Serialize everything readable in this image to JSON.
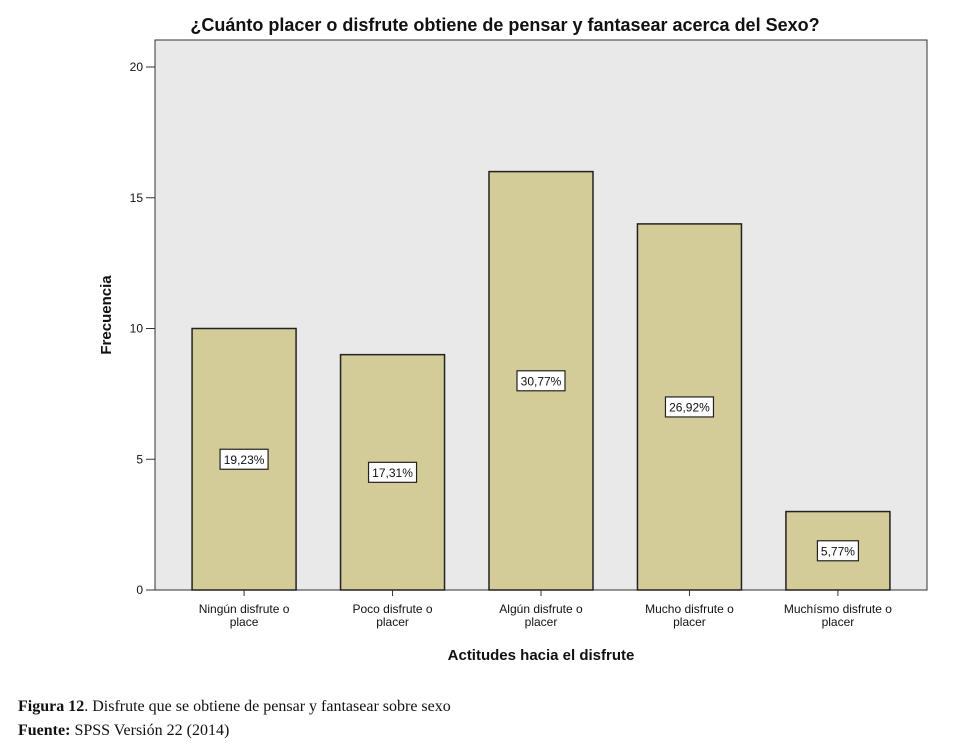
{
  "chart_data": {
    "type": "bar",
    "title": "¿Cuánto placer o disfrute obtiene de pensar y fantasear acerca del Sexo?",
    "xlabel": "Actitudes hacia el disfrute",
    "ylabel": "Frecuencia",
    "ylim": [
      0,
      20
    ],
    "yticks": [
      0,
      5,
      10,
      15,
      20
    ],
    "grid": false,
    "categories": [
      [
        "Ningún disfrute o",
        "place"
      ],
      [
        "Poco disfrute o",
        "placer"
      ],
      [
        "Algún  disfrute o",
        "placer"
      ],
      [
        "Mucho disfrute o",
        "placer"
      ],
      [
        "Muchísmo disfrute o",
        "placer"
      ]
    ],
    "values": [
      10,
      9,
      16,
      14,
      3
    ],
    "data_labels": [
      "19,23%",
      "17,31%",
      "30,77%",
      "26,92%",
      "5,77%"
    ],
    "colors": {
      "bar_fill": "#d3cc98",
      "bar_stroke": "#222222",
      "plot_bg": "#e9e9e9"
    }
  },
  "caption": {
    "figure_label": "Figura 12",
    "figure_text": ". Disfrute que se obtiene de pensar y fantasear sobre sexo",
    "source_label": "Fuente:",
    "source_text": " SPSS Versión 22 (2014)"
  }
}
